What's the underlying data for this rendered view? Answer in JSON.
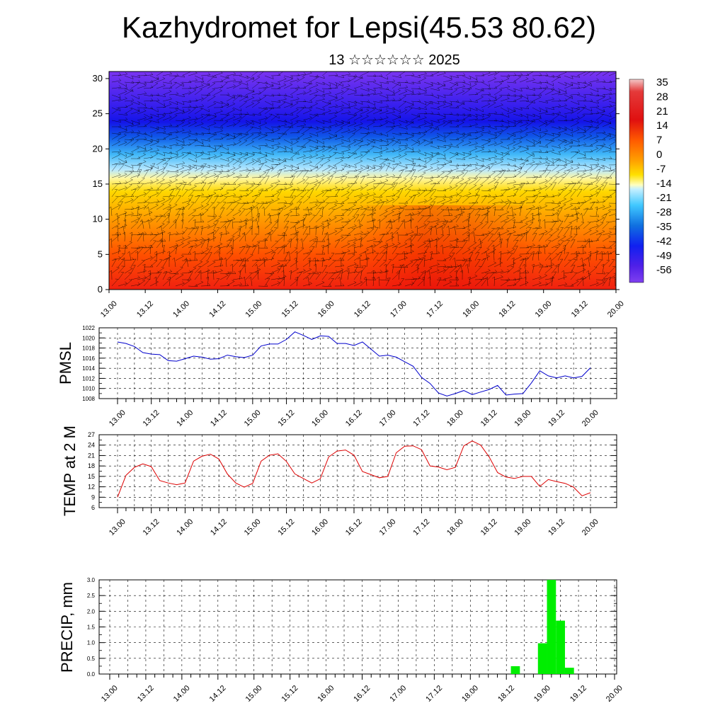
{
  "title": "Kazhydromet for Lepsi(45.53 80.62)",
  "subtitle": "13 ☆☆☆☆☆☆ 2025",
  "colors": {
    "pmsl_line": "#0000cc",
    "temp_line": "#dd0000",
    "precip_bar": "#00ee00"
  },
  "chart_data": [
    {
      "type": "heatmap",
      "name": "cross-section",
      "x_tick_labels": [
        "13.00",
        "13.12",
        "14.00",
        "14.12",
        "15.00",
        "15.12",
        "16.00",
        "16.12",
        "17.00",
        "17.12",
        "18.00",
        "18.12",
        "19.00",
        "19.12",
        "20.00"
      ],
      "y_ticks": [
        0,
        5,
        10,
        15,
        20,
        25,
        30
      ],
      "ylim": [
        0,
        31
      ],
      "colorbar_labels": [
        "35",
        "28",
        "21",
        "14",
        "7",
        "0",
        "-7",
        "-14",
        "-21",
        "-28",
        "-35",
        "-42",
        "-49",
        "-56"
      ],
      "colorbar_range": [
        -63,
        42
      ],
      "height_profile_km": [
        0,
        5,
        10,
        14,
        17,
        20,
        23,
        26,
        31
      ],
      "temperature_profile": [
        30,
        18,
        7,
        -8,
        -22,
        -38,
        -55,
        -60,
        -58
      ],
      "overlay": "wind barbs"
    },
    {
      "type": "line",
      "name": "PMSL",
      "ylabel": "PMSL",
      "ylim": [
        1008,
        1022
      ],
      "y_ticks": [
        1008,
        1010,
        1012,
        1014,
        1016,
        1018,
        1020,
        1022
      ],
      "x_tick_labels": [
        "13.00",
        "13.12",
        "14.00",
        "14.12",
        "15.00",
        "15.12",
        "16.00",
        "16.12",
        "17.00",
        "17.12",
        "18.00",
        "18.12",
        "19.00",
        "19.12",
        "20.00"
      ],
      "values": [
        1019.2,
        1018.9,
        1018.3,
        1017.1,
        1016.8,
        1016.7,
        1015.5,
        1015.4,
        1015.9,
        1016.4,
        1016.2,
        1015.8,
        1015.9,
        1016.6,
        1016.3,
        1016.1,
        1016.6,
        1018.4,
        1018.8,
        1018.8,
        1019.7,
        1021.2,
        1020.5,
        1019.7,
        1020.4,
        1020.3,
        1018.9,
        1018.9,
        1018.5,
        1019.2,
        1017.8,
        1016.4,
        1016.6,
        1016.2,
        1015.3,
        1014.4,
        1012.2,
        1011.0,
        1009.1,
        1008.5,
        1009.0,
        1009.6,
        1008.8,
        1009.3,
        1009.8,
        1010.6,
        1008.7,
        1008.9,
        1009.0,
        1011.1,
        1013.5,
        1012.5,
        1012.1,
        1012.5,
        1012.1,
        1012.4,
        1014.1
      ]
    },
    {
      "type": "line",
      "name": "TEMP at 2 M",
      "ylabel": "TEMP at 2 M",
      "ylim": [
        6,
        27
      ],
      "y_ticks": [
        6,
        9,
        12,
        15,
        18,
        21,
        24,
        27
      ],
      "x_tick_labels": [
        "13.00",
        "13.12",
        "14.00",
        "14.12",
        "15.00",
        "15.12",
        "16.00",
        "16.12",
        "17.00",
        "17.12",
        "18.00",
        "18.12",
        "19.00",
        "19.12",
        "20.00"
      ],
      "values": [
        9.0,
        15.3,
        17.6,
        18.6,
        17.8,
        13.8,
        13.1,
        12.6,
        13.1,
        19.4,
        20.8,
        21.4,
        20.0,
        15.7,
        13.1,
        11.9,
        13.0,
        19.4,
        21.1,
        21.5,
        19.3,
        15.7,
        14.4,
        13.1,
        14.3,
        20.6,
        22.3,
        22.6,
        21.1,
        16.4,
        15.5,
        14.6,
        15.0,
        21.8,
        23.7,
        23.8,
        22.7,
        18.0,
        17.7,
        16.9,
        17.6,
        23.8,
        25.2,
        24.0,
        20.6,
        16.1,
        14.8,
        14.4,
        15.0,
        15.0,
        12.1,
        14.1,
        13.5,
        13.0,
        11.9,
        9.4,
        10.3
      ]
    },
    {
      "type": "bar",
      "name": "PRECIP, mm",
      "ylabel": "PRECIP, mm",
      "ylim": [
        0,
        3.0
      ],
      "y_ticks": [
        "0.0",
        "0.5",
        "1.0",
        "1.5",
        "2.0",
        "2.5",
        "3.0"
      ],
      "x_tick_labels": [
        "13.00",
        "13.12",
        "14.00",
        "14.12",
        "15.00",
        "15.12",
        "16.00",
        "16.12",
        "17.00",
        "17.12",
        "18.00",
        "18.12",
        "19.00",
        "19.12",
        "20.00"
      ],
      "bar_interval_hours": 3,
      "bars": [
        {
          "t_hours": 135,
          "value": 0.25
        },
        {
          "t_hours": 144,
          "value": 0.98
        },
        {
          "t_hours": 147,
          "value": 3.0
        },
        {
          "t_hours": 150,
          "value": 1.7
        },
        {
          "t_hours": 153,
          "value": 0.2
        }
      ]
    }
  ]
}
